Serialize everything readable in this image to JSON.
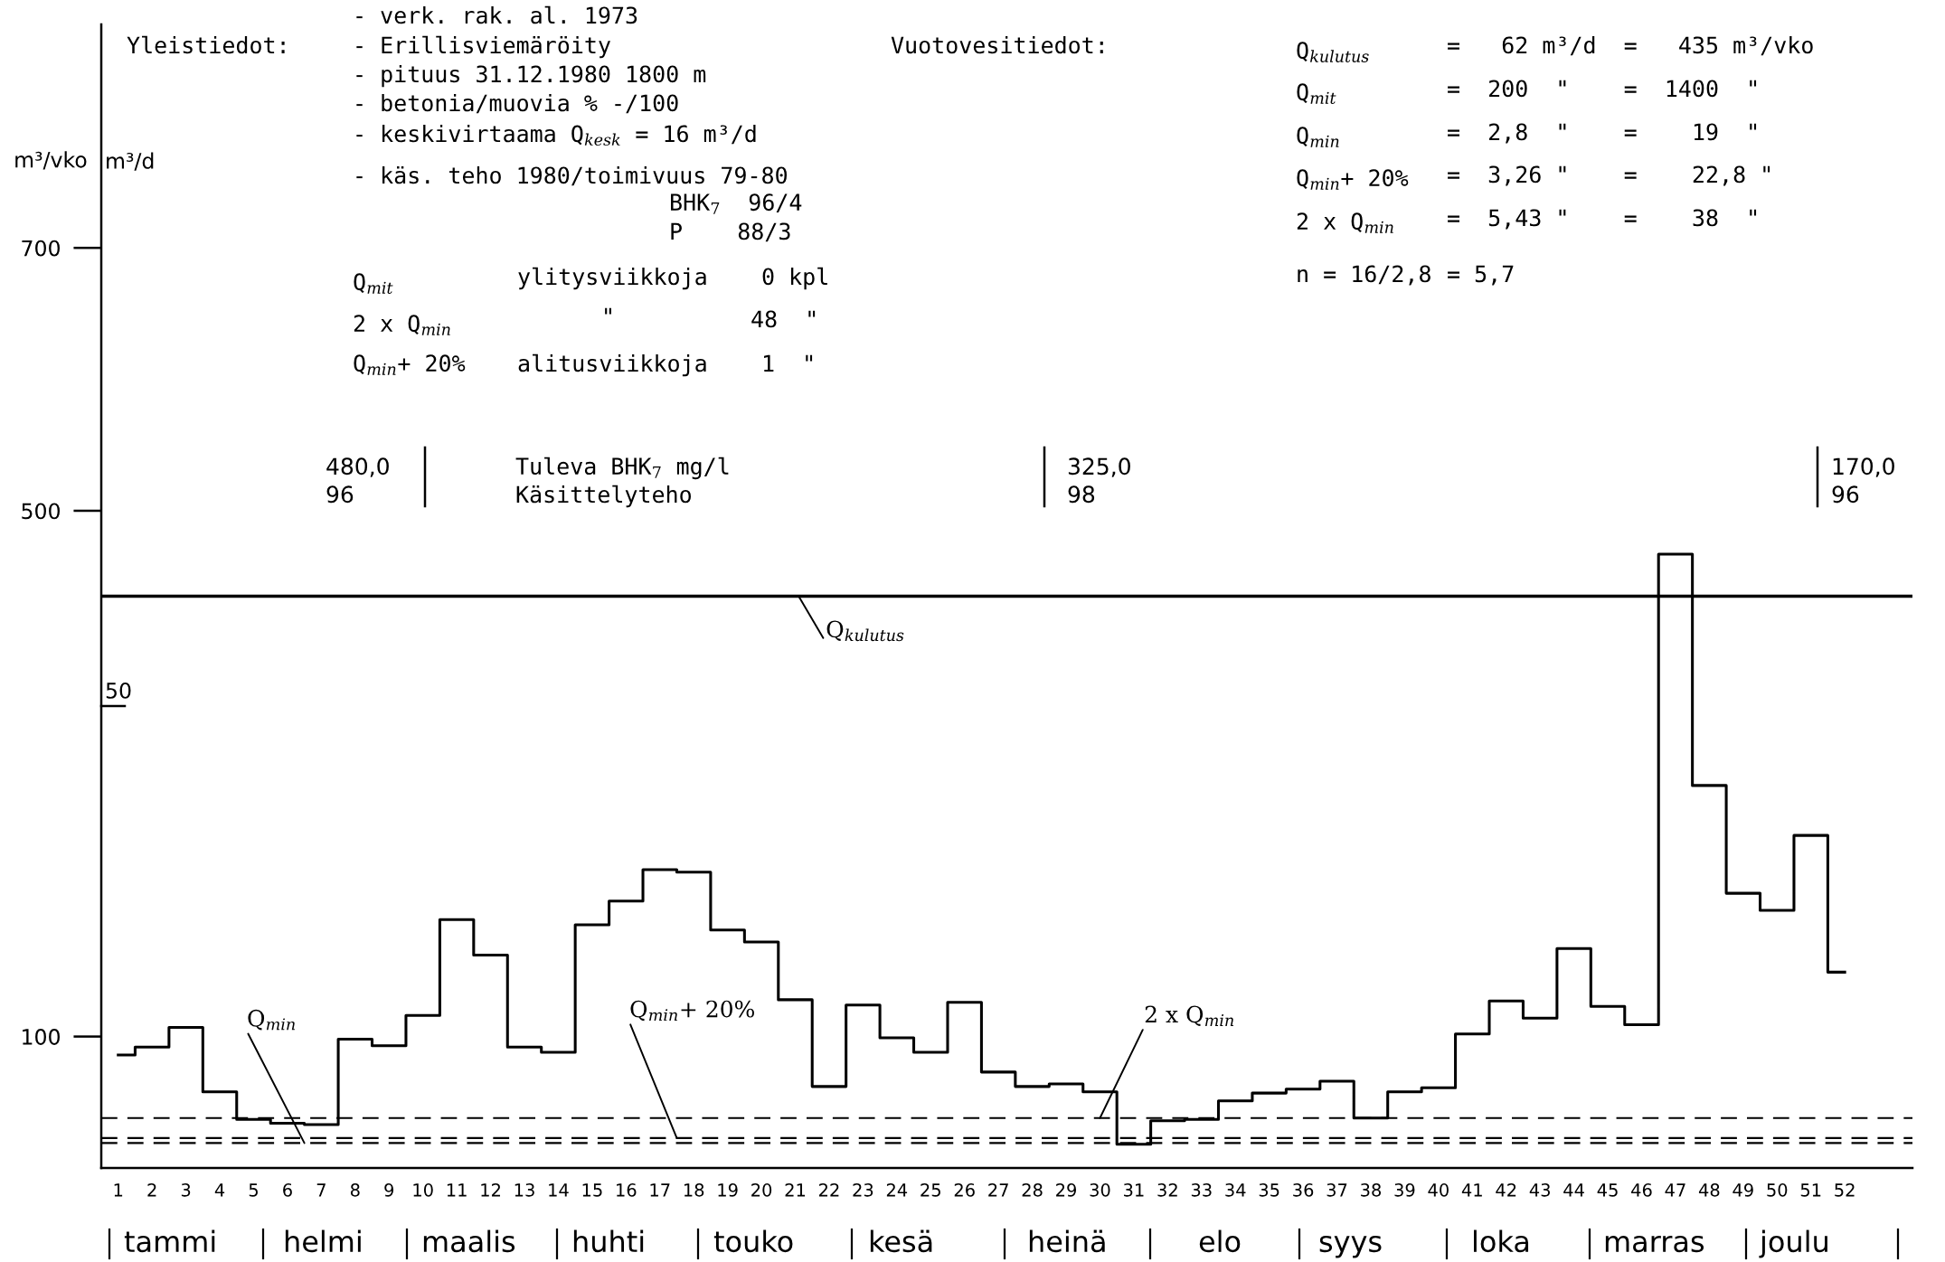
{
  "chart_data": {
    "type": "step",
    "categories": [
      "1",
      "2",
      "3",
      "4",
      "5",
      "6",
      "7",
      "8",
      "9",
      "10",
      "11",
      "12",
      "13",
      "14",
      "15",
      "16",
      "17",
      "18",
      "19",
      "20",
      "21",
      "22",
      "23",
      "24",
      "25",
      "26",
      "27",
      "28",
      "29",
      "30",
      "31",
      "32",
      "33",
      "34",
      "35",
      "36",
      "37",
      "38",
      "39",
      "40",
      "41",
      "42",
      "43",
      "44",
      "45",
      "46",
      "47",
      "48",
      "49",
      "50",
      "51",
      "52"
    ],
    "values": [
      86,
      92,
      107,
      58,
      37,
      34,
      33,
      98,
      93,
      116,
      189,
      162,
      92,
      88,
      185,
      203,
      227,
      225,
      181,
      172,
      128,
      62,
      124,
      99,
      88,
      126,
      73,
      62,
      64,
      58,
      18,
      36,
      37,
      51,
      57,
      60,
      66,
      38,
      58,
      61,
      102,
      127,
      114,
      167,
      123,
      109,
      467,
      291,
      209,
      196,
      253,
      149
    ],
    "color": "#000000",
    "ylabel": "m³/vko",
    "y2label": "m³/d",
    "ylim": [
      0,
      870
    ],
    "yticks": [
      100,
      500,
      700
    ],
    "grid": false,
    "marker": "none",
    "line_style": "solid",
    "ref_lines": [
      {
        "axis": "y",
        "value": 435,
        "label": "Q$_{kulutus}$",
        "line_style": "solid",
        "color": "#000000"
      },
      {
        "axis": "y",
        "value": 38,
        "label": "2 x Q$_{min}$",
        "line_style": "dashed",
        "color": "#000000"
      },
      {
        "axis": "y",
        "value": 22.8,
        "label": "Q$_{min}$+ 20%",
        "line_style": "dashed",
        "color": "#000000"
      },
      {
        "axis": "y",
        "value": 19,
        "label": "Q$_{min}$",
        "line_style": "dashed",
        "color": "#000000"
      }
    ],
    "annotations": [
      "Yleistiedot:",
      "- verk. rak. al. 1973",
      "- Erillisviemäröity",
      "- pituus 31.12.1980 1800 m",
      "- betonia/muovia % -/100",
      "- keskivirtaama Q$_{kesk}$ = 16 m³/d",
      "- käs. teho 1980/toimivuus 79-80",
      "BHK$_{7}$  96/4",
      "P    88/3",
      "Q$_{mit}$",
      "ylitysviikkoja",
      "0 kpl",
      "2 x Q$_{min}$",
      "\"",
      "48  \"",
      "Q$_{min}$+ 20%",
      "alitusviikkoja",
      "1  \"",
      "Vuotovesitiedot:",
      "Q$_{kulutus}$",
      "=   62 m³/d  =   435 m³/vko",
      "Q$_{mit}$",
      "=  200  \"    =  1400  \"",
      "Q$_{min}$",
      "=  2,8  \"    =    19  \"",
      "Q$_{min}$+ 20%",
      "=  3,26 \"    =    22,8 \"",
      "2 x Q$_{min}$",
      "=  5,43 \"    =    38  \"",
      "n = 16/2,8",
      "= 5,7",
      "480,0",
      "96",
      "Tuleva BHK$_{7}$ mg/l",
      "Käsittelyteho",
      "325,0",
      "98",
      "170,0",
      "96",
      "50",
      "tammi",
      "helmi",
      "maalis",
      "huhti",
      "touko",
      "kesä",
      "heinä",
      "elo",
      "syys",
      "loka",
      "marras",
      "joulu"
    ]
  }
}
